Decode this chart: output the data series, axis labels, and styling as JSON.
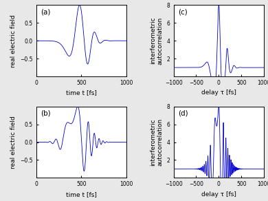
{
  "blue_color": "#0000cc",
  "background": "#e8e8e8",
  "panel_bg": "#ffffff",
  "fig_width": 3.9,
  "fig_height": 2.92,
  "dpi": 100,
  "panel_labels": [
    "(a)",
    "(b)",
    "(c)",
    "(d)"
  ],
  "left_xlabel": "time t [fs]",
  "right_xlabel": "delay τ [fs]",
  "left_ylabel": "real electric field",
  "right_ylabel": "interferometric\nautocorrelation",
  "left_xlim": [
    0,
    1000
  ],
  "right_xlim": [
    -1000,
    1000
  ],
  "left_ylim": [
    -1.0,
    1.0
  ],
  "right_ylim": [
    0,
    8
  ],
  "left_xticks": [
    0,
    500,
    1000
  ],
  "right_xticks": [
    -1000,
    -500,
    0,
    500,
    1000
  ],
  "left_yticks": [
    -0.5,
    0,
    0.5
  ],
  "right_yticks": [
    2,
    4,
    6,
    8
  ],
  "pulse_a": {
    "t0": 480,
    "sigma": 100,
    "chirp": 5e-05,
    "carrier": 0.028
  },
  "pulse_b": {
    "t0": 460,
    "sigma": 110,
    "chirp": 0.00022,
    "carrier": 0.028
  }
}
